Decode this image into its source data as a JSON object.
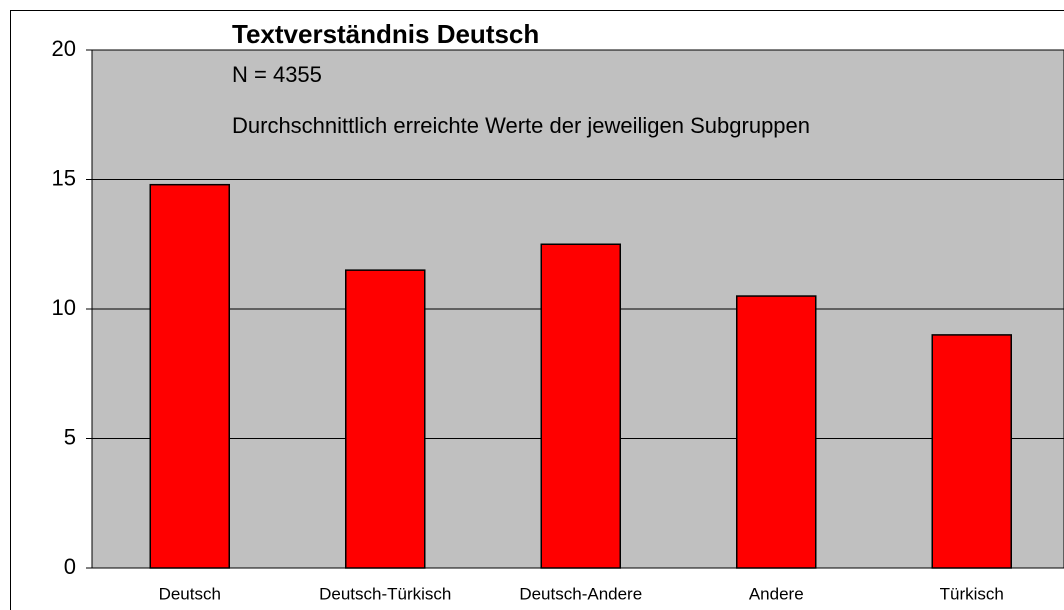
{
  "chart_data": {
    "type": "bar",
    "title": "Textverständnis Deutsch",
    "annotations": [
      "N = 4355",
      "Durchschnittlich erreichte Werte der jeweiligen Subgruppen"
    ],
    "categories": [
      "Deutsch",
      "Deutsch-Türkisch",
      "Deutsch-Andere",
      "Andere",
      "Türkisch"
    ],
    "values": [
      14.8,
      11.5,
      12.5,
      10.5,
      9
    ],
    "color": "#ff0000",
    "ylim": [
      0,
      20
    ],
    "yticks": [
      0,
      5,
      10,
      15,
      20
    ],
    "grid": true
  }
}
